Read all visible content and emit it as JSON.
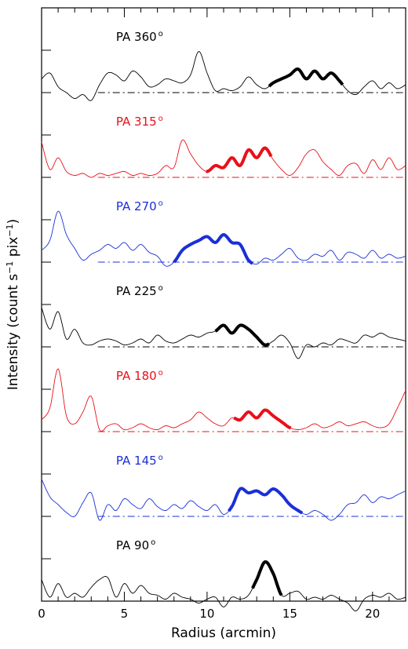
{
  "chart_data": {
    "type": "line",
    "xlabel": "Radius (arcmin)",
    "ylabel_main": "Intensity (count s",
    "ylabel_sup1": "−1",
    "ylabel_mid": " pix",
    "ylabel_sup2": "−1",
    "ylabel_end": ")",
    "xlim": [
      0,
      22
    ],
    "x_ticks": [
      0,
      5,
      10,
      15,
      20
    ],
    "x_tick_labels": [
      "0",
      "5",
      "10",
      "15",
      "20"
    ],
    "grid": false,
    "legend": "none",
    "colors": {
      "black": "#000000",
      "red": "#e8101a",
      "blue": "#1a2fd8"
    },
    "series": [
      {
        "name": "PA 360°",
        "label_text": "PA 360",
        "deg": "o",
        "color": "#000000",
        "x": [
          0,
          0.5,
          1,
          1.5,
          2,
          2.5,
          3,
          3.5,
          4,
          4.5,
          5,
          5.5,
          6,
          6.5,
          7,
          7.5,
          8,
          8.5,
          9,
          9.5,
          10,
          10.5,
          11,
          11.5,
          12,
          12.5,
          13,
          13.5,
          14,
          14.5,
          15,
          15.5,
          16,
          16.5,
          17,
          17.5,
          18,
          18.5,
          19,
          19.5,
          20,
          20.5,
          21,
          21.5,
          22
        ],
        "y": [
          0.35,
          0.5,
          0.15,
          0.0,
          -0.15,
          -0.05,
          -0.2,
          0.2,
          0.5,
          0.45,
          0.3,
          0.55,
          0.4,
          0.15,
          0.2,
          0.35,
          0.3,
          0.25,
          0.45,
          1.05,
          0.5,
          0.05,
          0.1,
          0.05,
          0.15,
          0.4,
          0.2,
          0.1,
          0.25,
          0.35,
          0.45,
          0.6,
          0.35,
          0.55,
          0.35,
          0.5,
          0.3,
          0.05,
          -0.05,
          0.15,
          0.3,
          0.1,
          0.25,
          0.1,
          0.2
        ],
        "highlight_range": [
          13.7,
          18.2
        ]
      },
      {
        "name": "PA 315°",
        "label_text": "PA 315",
        "deg": "o",
        "color": "#e8101a",
        "x": [
          0,
          0.5,
          1,
          1.5,
          2,
          2.5,
          3,
          3.5,
          4,
          4.5,
          5,
          5.5,
          6,
          6.5,
          7,
          7.5,
          8,
          8.5,
          9,
          9.5,
          10,
          10.5,
          11,
          11.5,
          12,
          12.5,
          13,
          13.5,
          14,
          14.5,
          15,
          15.5,
          16,
          16.5,
          17,
          17.5,
          18,
          18.5,
          19,
          19.5,
          20,
          20.5,
          21,
          21.5,
          22
        ],
        "y": [
          0.9,
          0.2,
          0.5,
          0.15,
          0.05,
          0.1,
          0.0,
          0.1,
          0.05,
          0.1,
          0.15,
          0.05,
          0.1,
          0.05,
          0.1,
          0.3,
          0.25,
          0.95,
          0.6,
          0.3,
          0.15,
          0.3,
          0.25,
          0.5,
          0.3,
          0.7,
          0.5,
          0.75,
          0.45,
          0.2,
          0.05,
          0.25,
          0.6,
          0.7,
          0.4,
          0.2,
          0.05,
          0.3,
          0.35,
          0.1,
          0.45,
          0.2,
          0.5,
          0.2,
          0.3
        ],
        "highlight_range": [
          9.9,
          13.9
        ]
      },
      {
        "name": "PA 270°",
        "label_text": "PA 270",
        "deg": "o",
        "color": "#1a2fd8",
        "x": [
          0,
          0.5,
          1,
          1.5,
          2,
          2.5,
          3,
          3.5,
          4,
          4.5,
          5,
          5.5,
          6,
          6.5,
          7,
          7.5,
          8,
          8.5,
          9,
          9.5,
          10,
          10.5,
          11,
          11.5,
          12,
          12.5,
          13,
          13.5,
          14,
          14.5,
          15,
          15.5,
          16,
          16.5,
          17,
          17.5,
          18,
          18.5,
          19,
          19.5,
          20,
          20.5,
          21,
          21.5,
          22
        ],
        "y": [
          0.3,
          0.55,
          1.3,
          0.7,
          0.35,
          0.05,
          0.2,
          0.3,
          0.45,
          0.35,
          0.5,
          0.3,
          0.45,
          0.25,
          0.15,
          -0.1,
          0.0,
          0.3,
          0.45,
          0.55,
          0.65,
          0.5,
          0.7,
          0.5,
          0.45,
          0.05,
          -0.05,
          0.1,
          0.05,
          0.2,
          0.35,
          0.1,
          0.05,
          0.2,
          0.15,
          0.3,
          0.05,
          0.25,
          0.2,
          0.1,
          0.3,
          0.1,
          0.2,
          0.1,
          0.15
        ],
        "highlight_range": [
          8.0,
          12.8
        ]
      },
      {
        "name": "PA 225°",
        "label_text": "PA 225",
        "deg": "o",
        "color": "#000000",
        "x": [
          0,
          0.5,
          1,
          1.5,
          2,
          2.5,
          3,
          3.5,
          4,
          4.5,
          5,
          5.5,
          6,
          6.5,
          7,
          7.5,
          8,
          8.5,
          9,
          9.5,
          10,
          10.5,
          11,
          11.5,
          12,
          12.5,
          13,
          13.5,
          14,
          14.5,
          15,
          15.5,
          16,
          16.5,
          17,
          17.5,
          18,
          18.5,
          19,
          19.5,
          20,
          20.5,
          21,
          21.5,
          22
        ],
        "y": [
          1.0,
          0.45,
          0.9,
          0.2,
          0.45,
          0.1,
          0.05,
          0.15,
          0.2,
          0.15,
          0.05,
          0.1,
          0.2,
          0.1,
          0.3,
          0.15,
          0.1,
          0.2,
          0.3,
          0.25,
          0.35,
          0.4,
          0.55,
          0.35,
          0.55,
          0.45,
          0.25,
          0.05,
          0.15,
          0.3,
          0.1,
          -0.3,
          0.05,
          0.0,
          0.1,
          0.05,
          0.2,
          0.15,
          0.1,
          0.3,
          0.25,
          0.35,
          0.25,
          0.2,
          0.15
        ],
        "highlight_range": [
          10.5,
          13.8
        ]
      },
      {
        "name": "PA 180°",
        "label_text": "PA 180",
        "deg": "o",
        "color": "#e8101a",
        "x": [
          0,
          0.5,
          1,
          1.5,
          2,
          2.5,
          3,
          3.5,
          4,
          4.5,
          5,
          5.5,
          6,
          6.5,
          7,
          7.5,
          8,
          8.5,
          9,
          9.5,
          10,
          10.5,
          11,
          11.5,
          12,
          12.5,
          13,
          13.5,
          14,
          14.5,
          15,
          15.5,
          16,
          16.5,
          17,
          17.5,
          18,
          18.5,
          19,
          19.5,
          20,
          20.5,
          21,
          21.5,
          22
        ],
        "y": [
          0.3,
          0.6,
          1.6,
          0.4,
          0.2,
          0.5,
          0.9,
          0.05,
          0.15,
          0.2,
          0.05,
          0.1,
          0.2,
          0.1,
          0.05,
          0.15,
          0.1,
          0.2,
          0.3,
          0.5,
          0.35,
          0.2,
          0.15,
          0.35,
          0.3,
          0.5,
          0.35,
          0.55,
          0.4,
          0.25,
          0.1,
          0.05,
          0.1,
          0.2,
          0.1,
          0.15,
          0.25,
          0.15,
          0.2,
          0.25,
          0.15,
          0.1,
          0.2,
          0.6,
          1.05
        ],
        "highlight_range": [
          11.6,
          15.1
        ]
      },
      {
        "name": "PA 145°",
        "label_text": "PA 145",
        "deg": "o",
        "color": "#1a2fd8",
        "x": [
          0,
          0.5,
          1,
          1.5,
          2,
          2.5,
          3,
          3.5,
          4,
          4.5,
          5,
          5.5,
          6,
          6.5,
          7,
          7.5,
          8,
          8.5,
          9,
          9.5,
          10,
          10.5,
          11,
          11.5,
          12,
          12.5,
          13,
          13.5,
          14,
          14.5,
          15,
          15.5,
          16,
          16.5,
          17,
          17.5,
          18,
          18.5,
          19,
          19.5,
          20,
          20.5,
          21,
          21.5,
          22
        ],
        "y": [
          0.95,
          0.5,
          0.3,
          0.1,
          0.0,
          0.35,
          0.6,
          -0.1,
          0.3,
          0.15,
          0.45,
          0.3,
          0.2,
          0.45,
          0.25,
          0.15,
          0.3,
          0.2,
          0.4,
          0.25,
          0.15,
          0.3,
          0.05,
          0.25,
          0.7,
          0.6,
          0.65,
          0.55,
          0.7,
          0.55,
          0.3,
          0.15,
          0.05,
          0.15,
          0.05,
          -0.1,
          0.05,
          0.3,
          0.35,
          0.55,
          0.35,
          0.5,
          0.45,
          0.55,
          0.65
        ],
        "highlight_range": [
          11.3,
          15.8
        ]
      },
      {
        "name": "PA 90°",
        "label_text": "PA 90",
        "deg": "o",
        "color": "#000000",
        "x": [
          0,
          0.5,
          1,
          1.5,
          2,
          2.5,
          3,
          3.5,
          4,
          4.5,
          5,
          5.5,
          6,
          6.5,
          7,
          7.5,
          8,
          8.5,
          9,
          9.5,
          10,
          10.5,
          11,
          11.5,
          12,
          12.5,
          13,
          13.5,
          14,
          14.5,
          15,
          15.5,
          16,
          16.5,
          17,
          17.5,
          18,
          18.5,
          19,
          19.5,
          20,
          20.5,
          21,
          21.5,
          22
        ],
        "y": [
          0.55,
          0.1,
          0.45,
          0.1,
          0.2,
          0.1,
          0.35,
          0.55,
          0.6,
          0.1,
          0.45,
          0.2,
          0.4,
          0.2,
          0.15,
          0.05,
          0.2,
          0.1,
          0.05,
          -0.05,
          0.05,
          0.1,
          -0.15,
          0.1,
          0.05,
          0.15,
          0.55,
          1.0,
          0.7,
          0.15,
          0.2,
          0.25,
          0.05,
          0.1,
          0.05,
          0.15,
          0.05,
          -0.05,
          -0.25,
          0.05,
          0.15,
          0.1,
          0.2,
          0.05,
          0.1
        ],
        "highlight_range": [
          12.7,
          14.5
        ]
      }
    ]
  }
}
